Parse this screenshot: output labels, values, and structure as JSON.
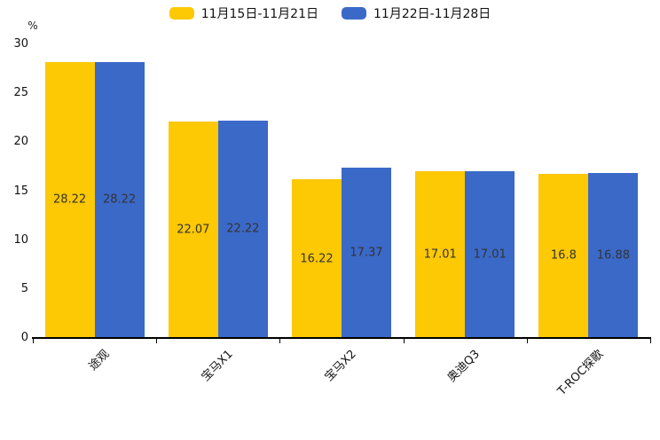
{
  "chart": {
    "unit_label": "%"
  },
  "chart_data": {
    "type": "bar",
    "categories": [
      "途观",
      "宝马X1",
      "宝马X2",
      "奥迪Q3",
      "T-ROC探歌"
    ],
    "series": [
      {
        "name": "11月15日-11月21日",
        "color": "#FDC804",
        "values": [
          28.22,
          22.07,
          16.22,
          17.01,
          16.8
        ]
      },
      {
        "name": "11月22日-11月28日",
        "color": "#3B69C8",
        "values": [
          28.22,
          22.22,
          17.37,
          17.01,
          16.88
        ]
      }
    ],
    "title": "",
    "xlabel": "",
    "ylabel": "%",
    "ylim": [
      0,
      30
    ],
    "yticks": [
      0,
      5,
      10,
      15,
      20,
      25,
      30
    ],
    "grid": false,
    "legend_position": "top",
    "value_labels": "inside-center",
    "axis_color": "#000000",
    "label_text_color": "#333333"
  }
}
